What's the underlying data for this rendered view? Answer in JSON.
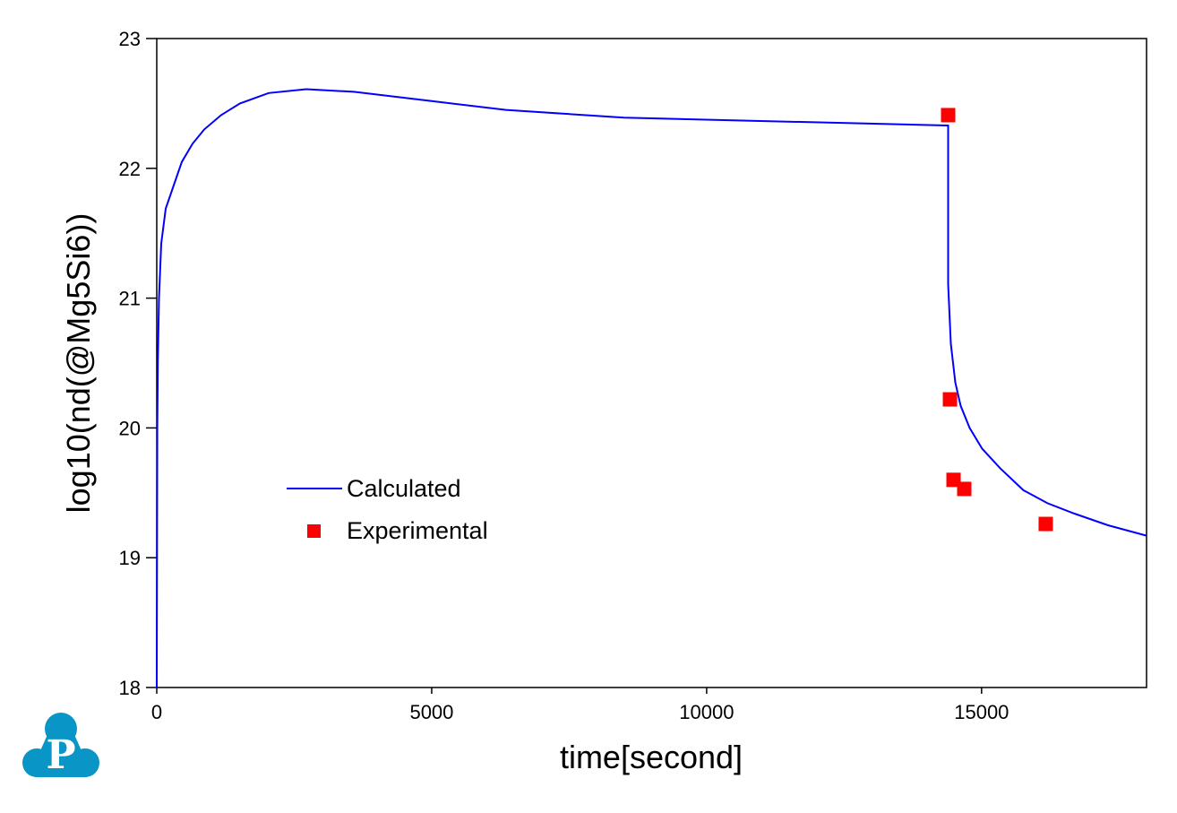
{
  "chart_data": {
    "type": "line",
    "title": "",
    "xlabel": "time[second]",
    "ylabel": "log10(nd(@Mg5Si6))",
    "xlim": [
      0,
      18000
    ],
    "ylim": [
      18,
      23
    ],
    "xticks": [
      0,
      5000,
      10000,
      15000
    ],
    "yticks": [
      18,
      19,
      20,
      21,
      22,
      23
    ],
    "xtick_labels": [
      "0",
      "5000",
      "10000",
      "15000"
    ],
    "ytick_labels": [
      "18",
      "19",
      "20",
      "21",
      "22",
      "23"
    ],
    "grid": false,
    "legend_placement": "center-left",
    "series": [
      {
        "name": "Calculated",
        "style": "line",
        "color": "#0000ff",
        "points": [
          [
            0,
            18.0
          ],
          [
            10,
            20.0
          ],
          [
            20,
            20.5
          ],
          [
            40,
            21.0
          ],
          [
            81,
            21.42
          ],
          [
            163,
            21.69
          ],
          [
            293,
            21.85
          ],
          [
            456,
            22.05
          ],
          [
            651,
            22.19
          ],
          [
            863,
            22.3
          ],
          [
            1172,
            22.41
          ],
          [
            1514,
            22.5
          ],
          [
            2035,
            22.58
          ],
          [
            2719,
            22.61
          ],
          [
            3582,
            22.59
          ],
          [
            4966,
            22.52
          ],
          [
            6350,
            22.45
          ],
          [
            8499,
            22.39
          ],
          [
            14376,
            22.33
          ],
          [
            14392,
            22.33
          ],
          [
            14392,
            21.11
          ],
          [
            14441,
            20.65
          ],
          [
            14522,
            20.35
          ],
          [
            14620,
            20.17
          ],
          [
            14783,
            20.0
          ],
          [
            15011,
            19.84
          ],
          [
            15336,
            19.69
          ],
          [
            15760,
            19.52
          ],
          [
            16199,
            19.42
          ],
          [
            16688,
            19.34
          ],
          [
            17300,
            19.25
          ],
          [
            18000,
            19.17
          ]
        ]
      },
      {
        "name": "Experimental",
        "style": "marker-square",
        "color": "#ff0000",
        "points": [
          [
            14392,
            22.41
          ],
          [
            14425,
            20.22
          ],
          [
            14490,
            19.6
          ],
          [
            14685,
            19.53
          ],
          [
            16167,
            19.26
          ]
        ]
      }
    ]
  },
  "logo": {
    "letter": "P",
    "color": "#0a95c7"
  }
}
